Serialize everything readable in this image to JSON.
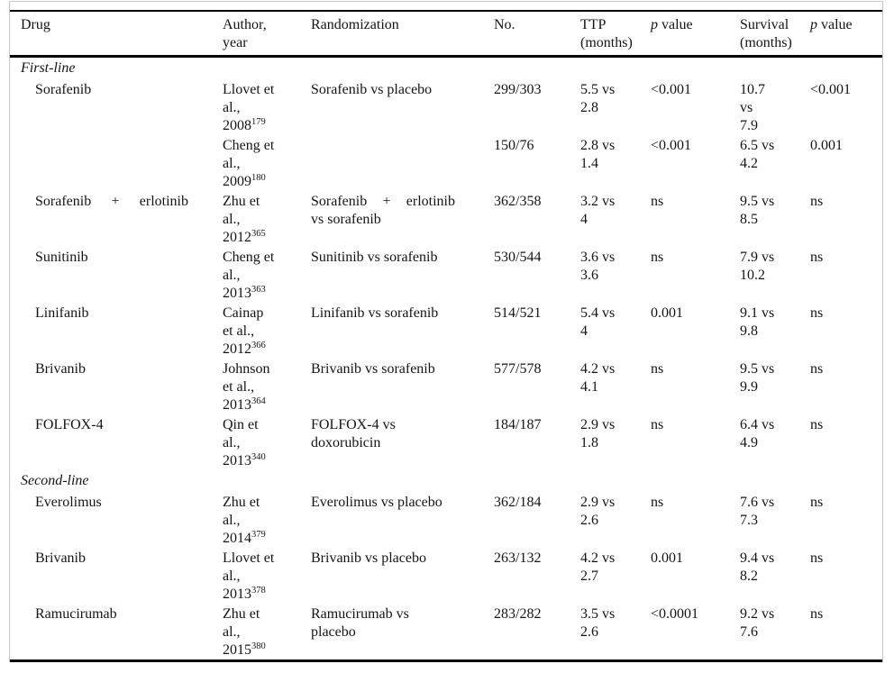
{
  "colors": {
    "text": "#141414",
    "rule": "#000000",
    "frame_border": "#c6c6c6",
    "background": "#ffffff"
  },
  "table": {
    "headers": [
      {
        "id": "drug",
        "lines": [
          "Drug"
        ]
      },
      {
        "id": "author",
        "lines": [
          "Author,",
          "year"
        ]
      },
      {
        "id": "rand",
        "lines": [
          "Randomization"
        ]
      },
      {
        "id": "no",
        "lines": [
          "No."
        ]
      },
      {
        "id": "ttp",
        "lines": [
          "TTP",
          "(months)"
        ]
      },
      {
        "id": "p1",
        "lines": [
          {
            "italic": "p",
            "t": " value"
          }
        ]
      },
      {
        "id": "surv",
        "lines": [
          "Survival",
          "(months)"
        ]
      },
      {
        "id": "p2",
        "lines": [
          {
            "italic": "p",
            "t": " value"
          }
        ]
      }
    ],
    "rows": [
      {
        "type": "section",
        "label": "First-line"
      },
      {
        "type": "data",
        "drug": [
          "Sorafenib"
        ],
        "author": [
          "Llovet et",
          "al.,",
          {
            "t": "2008",
            "sup": "179"
          }
        ],
        "rand": [
          "Sorafenib vs placebo"
        ],
        "no": "299/303",
        "ttp": [
          "5.5 vs",
          "2.8"
        ],
        "p1": "<0.001",
        "surv": [
          "10.7",
          "vs",
          "7.9"
        ],
        "p2": "<0.001"
      },
      {
        "type": "data",
        "drug": [],
        "author": [
          "Cheng et",
          "al.,",
          {
            "t": "2009",
            "sup": "180"
          }
        ],
        "rand": [],
        "no": "150/76",
        "ttp": [
          "2.8 vs",
          "1.4"
        ],
        "p1": "<0.001",
        "surv": [
          "6.5 vs",
          "4.2"
        ],
        "p2": "0.001"
      },
      {
        "type": "data",
        "drug": [
          {
            "t": "Sorafenib + erlotinib",
            "justify": true
          }
        ],
        "author": [
          "Zhu et",
          "al.,",
          {
            "t": "2012",
            "sup": "365"
          }
        ],
        "rand": [
          {
            "t": "Sorafenib + erlotinib",
            "justify": true
          },
          "vs sorafenib"
        ],
        "no": "362/358",
        "ttp": [
          "3.2 vs",
          "4"
        ],
        "p1": "ns",
        "surv": [
          "9.5 vs",
          "8.5"
        ],
        "p2": "ns"
      },
      {
        "type": "data",
        "drug": [
          "Sunitinib"
        ],
        "author": [
          "Cheng et",
          "al.,",
          {
            "t": "2013",
            "sup": "363"
          }
        ],
        "rand": [
          "Sunitinib vs sorafenib"
        ],
        "no": "530/544",
        "ttp": [
          "3.6 vs",
          "3.6"
        ],
        "p1": "ns",
        "surv": [
          "7.9 vs",
          "10.2"
        ],
        "p2": "ns"
      },
      {
        "type": "data",
        "drug": [
          "Linifanib"
        ],
        "author": [
          "Cainap",
          "et al.,",
          {
            "t": "2012",
            "sup": "366"
          }
        ],
        "rand": [
          "Linifanib vs sorafenib"
        ],
        "no": "514/521",
        "ttp": [
          "5.4 vs",
          "4"
        ],
        "p1": "0.001",
        "surv": [
          "9.1 vs",
          "9.8"
        ],
        "p2": "ns"
      },
      {
        "type": "data",
        "drug": [
          "Brivanib"
        ],
        "author": [
          "Johnson",
          "et al.,",
          {
            "t": "2013",
            "sup": "364"
          }
        ],
        "rand": [
          "Brivanib vs sorafenib"
        ],
        "no": "577/578",
        "ttp": [
          "4.2 vs",
          "4.1"
        ],
        "p1": "ns",
        "surv": [
          "9.5 vs",
          "9.9"
        ],
        "p2": "ns"
      },
      {
        "type": "data",
        "drug": [
          "FOLFOX-4"
        ],
        "author": [
          "Qin et",
          "al.,",
          {
            "t": "2013",
            "sup": "340"
          }
        ],
        "rand": [
          "FOLFOX-4 vs",
          "doxorubicin"
        ],
        "no": "184/187",
        "ttp": [
          "2.9 vs",
          "1.8"
        ],
        "p1": "ns",
        "surv": [
          "6.4 vs",
          "4.9"
        ],
        "p2": "ns"
      },
      {
        "type": "section",
        "label": "Second-line"
      },
      {
        "type": "data",
        "drug": [
          "Everolimus"
        ],
        "author": [
          "Zhu et",
          "al.,",
          {
            "t": "2014",
            "sup": "379"
          }
        ],
        "rand": [
          "Everolimus vs placebo"
        ],
        "no": "362/184",
        "ttp": [
          "2.9 vs",
          "2.6"
        ],
        "p1": "ns",
        "surv": [
          "7.6 vs",
          "7.3"
        ],
        "p2": "ns"
      },
      {
        "type": "data",
        "drug": [
          "Brivanib"
        ],
        "author": [
          "Llovet et",
          "al.,",
          {
            "t": "2013",
            "sup": "378"
          }
        ],
        "rand": [
          "Brivanib vs placebo"
        ],
        "no": "263/132",
        "ttp": [
          "4.2 vs",
          "2.7"
        ],
        "p1": "0.001",
        "surv": [
          "9.4 vs",
          "8.2"
        ],
        "p2": "ns"
      },
      {
        "type": "data",
        "drug": [
          "Ramucirumab"
        ],
        "author": [
          "Zhu et",
          "al.,",
          {
            "t": "2015",
            "sup": "380"
          }
        ],
        "rand": [
          "Ramucirumab vs",
          "placebo"
        ],
        "no": "283/282",
        "ttp": [
          "3.5 vs",
          "2.6"
        ],
        "p1": "<0.0001",
        "surv": [
          "9.2 vs",
          "7.6"
        ],
        "p2": "ns"
      }
    ]
  }
}
